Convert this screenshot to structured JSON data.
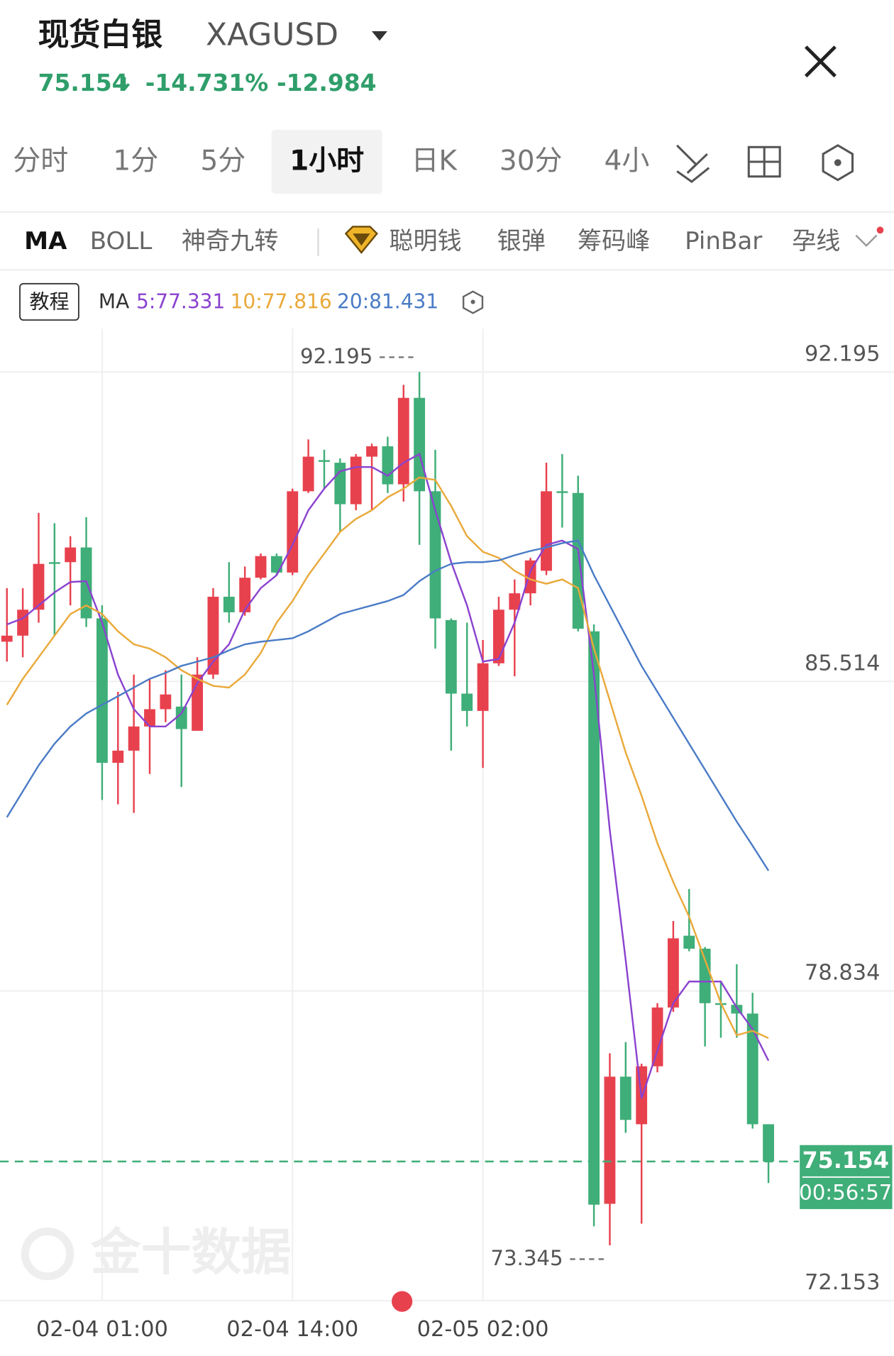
{
  "header": {
    "title": "现货白银",
    "symbol": "XAGUSD",
    "price": "75.154",
    "change_pct": "-14.731%",
    "change": "-12.984"
  },
  "tabs": [
    "分时",
    "1分",
    "5分",
    "1小时",
    "日K",
    "30分",
    "4小"
  ],
  "active_tab": "1小时",
  "indicators": [
    "MA",
    "BOLL",
    "神奇九转",
    "聪明钱",
    "银弹",
    "筹码峰",
    "PinBar",
    "孕线"
  ],
  "tutorial": "教程",
  "watermark": "金十数据",
  "chart_data": {
    "type": "candlestick",
    "categories": [
      null,
      null,
      null,
      null,
      null,
      null,
      "02-04 01:00",
      null,
      null,
      null,
      null,
      null,
      null,
      null,
      null,
      null,
      null,
      null,
      "02-04 14:00",
      null,
      null,
      null,
      null,
      null,
      null,
      null,
      null,
      null,
      null,
      null,
      "02-05 02:00",
      null,
      null,
      null,
      null,
      null,
      null,
      null,
      null,
      null,
      null,
      null,
      null,
      null,
      null,
      null,
      null,
      null,
      null
    ],
    "open": [
      86.372,
      86.503,
      87.063,
      88.089,
      88.089,
      88.406,
      86.876,
      83.759,
      84.021,
      84.543,
      84.916,
      84.972,
      84.45,
      85.663,
      87.343,
      87.007,
      87.753,
      88.22,
      87.865,
      89.619,
      90.291,
      90.235,
      89.34,
      90.366,
      90.59,
      89.769,
      91.635,
      89.619,
      86.839,
      85.252,
      84.879,
      85.906,
      87.063,
      87.417,
      87.903,
      89.619,
      89.582,
      86.596,
      74.241,
      76.985,
      75.958,
      77.209,
      78.478,
      80.027,
      79.747,
      78.571,
      78.534,
      78.347,
      75.958
    ],
    "high": [
      87.529,
      87.529,
      89.153,
      88.929,
      88.649,
      89.06,
      87.156,
      85.29,
      85.663,
      85.57,
      85.756,
      85.663,
      86.036,
      87.529,
      88.089,
      87.996,
      88.276,
      88.276,
      89.675,
      90.739,
      90.515,
      90.329,
      90.422,
      90.646,
      90.795,
      91.915,
      92.195,
      90.515,
      86.876,
      86.783,
      86.409,
      87.343,
      87.716,
      88.182,
      90.235,
      90.422,
      89.955,
      86.745,
      77.489,
      77.731,
      77.265,
      78.571,
      80.344,
      81.035,
      79.784,
      79.038,
      79.411,
      78.795,
      75.958
    ],
    "low": [
      85.943,
      86.036,
      86.783,
      86.503,
      87.156,
      86.689,
      82.957,
      82.863,
      82.677,
      83.517,
      84.636,
      83.237,
      84.45,
      85.57,
      86.783,
      86.932,
      87.716,
      87.809,
      87.809,
      89.582,
      89.675,
      88.742,
      89.209,
      89.209,
      89.582,
      89.396,
      88.462,
      86.223,
      84.021,
      84.543,
      83.647,
      85.85,
      85.626,
      87.156,
      87.809,
      88.836,
      86.596,
      73.756,
      73.345,
      75.772,
      73.812,
      77.078,
      78.384,
      79.691,
      77.638,
      77.824,
      77.824,
      75.865,
      74.689
    ],
    "close": [
      86.503,
      87.063,
      88.052,
      88.052,
      88.406,
      86.876,
      83.759,
      84.021,
      84.543,
      84.916,
      85.234,
      84.487,
      85.663,
      87.343,
      87.007,
      87.753,
      88.22,
      87.865,
      89.619,
      90.366,
      90.254,
      89.34,
      90.366,
      90.59,
      89.769,
      91.635,
      89.619,
      86.876,
      85.252,
      84.879,
      85.906,
      87.063,
      87.417,
      88.126,
      89.619,
      89.582,
      86.652,
      74.223,
      76.985,
      76.052,
      77.209,
      78.478,
      79.971,
      79.747,
      78.571,
      78.534,
      78.347,
      75.958,
      75.154
    ],
    "up_color": "#e8414e",
    "down_color": "#3fae78",
    "ma_label": "MA",
    "series": [
      {
        "name": "5:77.331",
        "color": "#8b43cf",
        "values": [
          86.745,
          86.876,
          87.156,
          87.436,
          87.66,
          87.679,
          86.783,
          85.663,
          84.916,
          84.543,
          84.543,
          84.823,
          85.476,
          85.943,
          86.316,
          87.063,
          87.529,
          87.809,
          88.462,
          89.209,
          89.675,
          90.049,
          90.142,
          90.142,
          89.955,
          90.235,
          90.422,
          89.209,
          88.089,
          87.156,
          85.943,
          85.999,
          86.783,
          87.903,
          88.462,
          88.556,
          88.369,
          85.663,
          82.304,
          79.504,
          76.518,
          77.545,
          78.571,
          79.038,
          79.038,
          79.038,
          78.478,
          78.011,
          77.331
        ]
      },
      {
        "name": "10:77.816",
        "color": "#e9a93a",
        "values": [
          85.01,
          85.57,
          86.036,
          86.503,
          86.969,
          87.156,
          86.969,
          86.596,
          86.316,
          86.223,
          86.036,
          85.756,
          85.57,
          85.42,
          85.383,
          85.663,
          86.13,
          86.783,
          87.249,
          87.809,
          88.276,
          88.742,
          89.022,
          89.209,
          89.489,
          89.675,
          89.918,
          89.862,
          89.302,
          88.649,
          88.313,
          88.182,
          87.903,
          87.716,
          87.623,
          87.716,
          87.529,
          86.223,
          85.103,
          83.983,
          83.05,
          82.024,
          81.184,
          80.437,
          79.504,
          78.571,
          77.88,
          77.974,
          77.816
        ]
      },
      {
        "name": "20:81.431",
        "color": "#4b7cc6",
        "values": [
          82.584,
          83.143,
          83.703,
          84.17,
          84.543,
          84.823,
          85.01,
          85.196,
          85.383,
          85.57,
          85.7,
          85.85,
          85.943,
          86.036,
          86.186,
          86.316,
          86.372,
          86.409,
          86.447,
          86.596,
          86.783,
          86.969,
          87.063,
          87.156,
          87.249,
          87.38,
          87.679,
          87.903,
          88.052,
          88.089,
          88.089,
          88.126,
          88.238,
          88.332,
          88.406,
          88.5,
          88.556,
          87.809,
          87.156,
          86.503,
          85.85,
          85.29,
          84.73,
          84.17,
          83.61,
          83.05,
          82.49,
          81.968,
          81.431
        ]
      }
    ],
    "ylim": [
      72.153,
      93.128
    ],
    "yticks": [
      72.153,
      78.834,
      85.514,
      92.195
    ],
    "grid": true,
    "last_price": 75.154,
    "countdown": "00:56:57",
    "annotations": [
      {
        "value": 92.195
      },
      {
        "value": 73.345
      }
    ]
  }
}
